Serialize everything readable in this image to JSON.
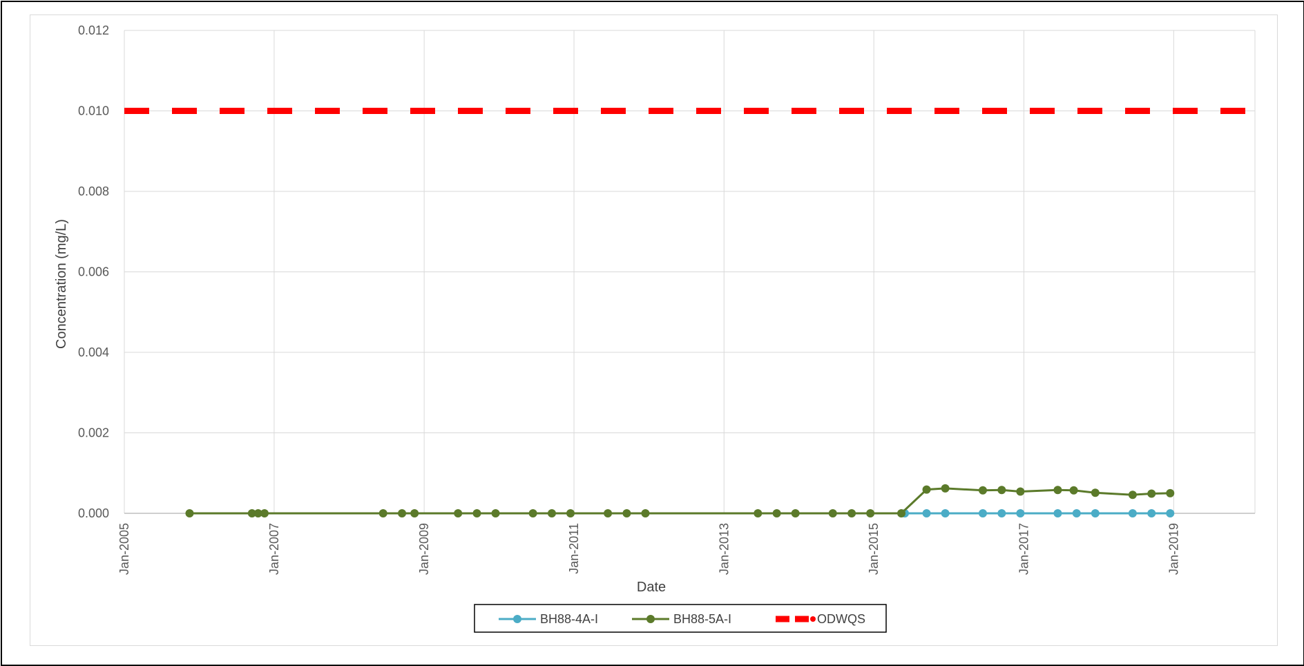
{
  "chart_data": {
    "type": "line",
    "title": "",
    "xlabel": "Date",
    "ylabel": "Concentration (mg/L)",
    "x_type": "date",
    "xlim": [
      "2005-01-01",
      "2020-02-01"
    ],
    "ylim": [
      0,
      0.012
    ],
    "grid": true,
    "legend_position": "bottom",
    "y_ticks": [
      "0.000",
      "0.002",
      "0.004",
      "0.006",
      "0.008",
      "0.010",
      "0.012"
    ],
    "x_ticks": [
      {
        "date": "2005-01-01",
        "label": "Jan-2005"
      },
      {
        "date": "2007-01-01",
        "label": "Jan-2007"
      },
      {
        "date": "2009-01-01",
        "label": "Jan-2009"
      },
      {
        "date": "2011-01-01",
        "label": "Jan-2011"
      },
      {
        "date": "2013-01-01",
        "label": "Jan-2013"
      },
      {
        "date": "2015-01-01",
        "label": "Jan-2015"
      },
      {
        "date": "2017-01-01",
        "label": "Jan-2017"
      },
      {
        "date": "2019-01-01",
        "label": "Jan-2019"
      }
    ],
    "series": [
      {
        "name": "ODWQS",
        "color": "#ff0000",
        "style": "dashed",
        "markers": false,
        "points": [
          [
            "2005-01-01",
            0.01
          ],
          [
            "2020-02-01",
            0.01
          ]
        ]
      },
      {
        "name": "BH88-4A-I",
        "color": "#4bacc6",
        "style": "solid",
        "markers": true,
        "points": [
          [
            "2015-06-01",
            0
          ],
          [
            "2015-09-15",
            0
          ],
          [
            "2015-12-15",
            0
          ],
          [
            "2016-06-15",
            0
          ],
          [
            "2016-09-15",
            0
          ],
          [
            "2016-12-15",
            0
          ],
          [
            "2017-06-15",
            0
          ],
          [
            "2017-09-15",
            0
          ],
          [
            "2017-12-15",
            0
          ],
          [
            "2018-06-15",
            0
          ],
          [
            "2018-09-15",
            0
          ],
          [
            "2018-12-15",
            0
          ]
        ]
      },
      {
        "name": "BH88-5A-I",
        "color": "#5b7a2a",
        "style": "solid",
        "markers": true,
        "points": [
          [
            "2005-11-15",
            0
          ],
          [
            "2006-09-15",
            0
          ],
          [
            "2006-10-15",
            0
          ],
          [
            "2006-11-15",
            0
          ],
          [
            "2008-06-15",
            0
          ],
          [
            "2008-09-15",
            0
          ],
          [
            "2008-11-15",
            0
          ],
          [
            "2009-06-15",
            0
          ],
          [
            "2009-09-15",
            0
          ],
          [
            "2009-12-15",
            0
          ],
          [
            "2010-06-15",
            0
          ],
          [
            "2010-09-15",
            0
          ],
          [
            "2010-12-15",
            0
          ],
          [
            "2011-06-15",
            0
          ],
          [
            "2011-09-15",
            0
          ],
          [
            "2011-12-15",
            0
          ],
          [
            "2013-06-15",
            0
          ],
          [
            "2013-09-15",
            0
          ],
          [
            "2013-12-15",
            0
          ],
          [
            "2014-06-15",
            0
          ],
          [
            "2014-09-15",
            0
          ],
          [
            "2014-12-15",
            0
          ],
          [
            "2015-05-15",
            0
          ],
          [
            "2015-09-15",
            0.00059
          ],
          [
            "2015-12-15",
            0.00062
          ],
          [
            "2016-06-15",
            0.00057
          ],
          [
            "2016-09-15",
            0.00058
          ],
          [
            "2016-12-15",
            0.00054
          ],
          [
            "2017-06-15",
            0.00058
          ],
          [
            "2017-09-01",
            0.00057
          ],
          [
            "2017-12-15",
            0.00051
          ],
          [
            "2018-06-15",
            0.00046
          ],
          [
            "2018-09-15",
            0.00049
          ],
          [
            "2018-12-15",
            0.0005
          ]
        ]
      }
    ],
    "legend": [
      {
        "name": "BH88-4A-I",
        "color": "#4bacc6",
        "style": "line-marker"
      },
      {
        "name": "BH88-5A-I",
        "color": "#5b7a2a",
        "style": "line-marker"
      },
      {
        "name": "ODWQS",
        "color": "#ff0000",
        "style": "dashed-marker"
      }
    ]
  }
}
